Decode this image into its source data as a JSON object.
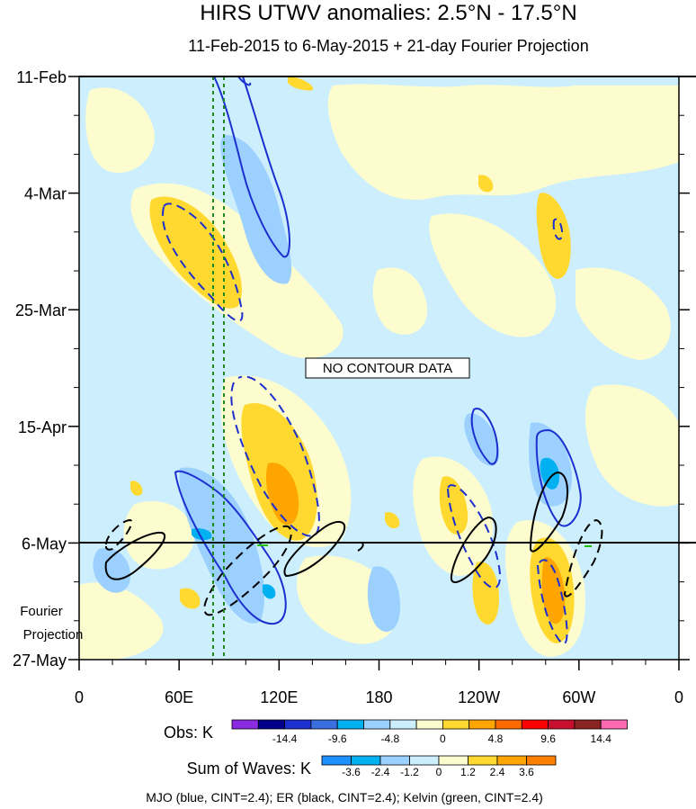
{
  "chart_data": {
    "type": "heatmap",
    "title": "HIRS UTWV anomalies: 2.5°N - 17.5°N",
    "subtitle": "11-Feb-2015 to 6-May-2015 + 21-day Fourier Projection",
    "x_ticks": [
      "0",
      "60E",
      "120E",
      "180",
      "120W",
      "60W",
      "0"
    ],
    "x_range": [
      0,
      360
    ],
    "y_ticks": [
      "11-Feb",
      "4-Mar",
      "25-Mar",
      "15-Apr",
      "6-May",
      "27-May"
    ],
    "y_range": [
      "11-Feb",
      "27-May"
    ],
    "projection_label": [
      "Fourier",
      "Projection"
    ],
    "projection_start": "6-May",
    "annotation": "NO CONTOUR DATA",
    "colorbar_obs": {
      "label": "Obs: K",
      "tick_labels": [
        "-14.4",
        "-9.6",
        "-4.8",
        "0",
        "4.8",
        "9.6",
        "14.4"
      ],
      "colors": [
        "#8a2be2",
        "#00008b",
        "#1c2fcf",
        "#3a6fe0",
        "#00b0f0",
        "#9bd0ff",
        "#cdeffd",
        "#fdfccf",
        "#ffd92f",
        "#ffa500",
        "#ff6a00",
        "#ff0000",
        "#c8102e",
        "#8b2323",
        "#ff69b4"
      ]
    },
    "colorbar_waves": {
      "label": "Sum of Waves: K",
      "tick_labels": [
        "-3.6",
        "-2.4",
        "-1.2",
        "0",
        "1.2",
        "2.4",
        "3.6"
      ],
      "colors": [
        "#1e90ff",
        "#00b0f0",
        "#9bd0ff",
        "#cdeffd",
        "#fdfccf",
        "#ffd92f",
        "#ffa500",
        "#ff7f00"
      ]
    },
    "footer": "MJO (blue, CINT=2.4); ER (black, CINT=2.4); Kelvin (green, CINT=2.4)",
    "colors": {
      "mjo": "#1c2fcf",
      "er": "#000000",
      "kelvin": "#22c000",
      "marker_lines": "#1f8a1f"
    },
    "reference_longitudes": [
      75,
      80
    ]
  }
}
